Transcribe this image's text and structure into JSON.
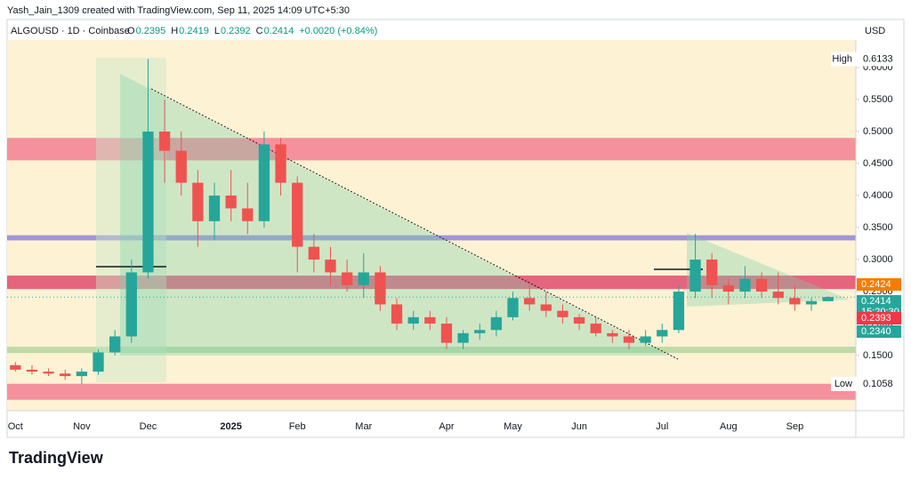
{
  "header": {
    "credit": "Yash_Jain_1309 created with TradingView.com, Sep 11, 2025 14:09 UTC+5:30",
    "symbol": "ALGOUSD · 1D · Coinbase",
    "ohlc": [
      {
        "name": "O",
        "value": 0.2395
      },
      {
        "name": "H",
        "value": 0.2419
      },
      {
        "name": "L",
        "value": 0.2392
      },
      {
        "name": "C",
        "value": 0.2414
      }
    ],
    "change": "+0.0020 (+0.84%)",
    "currency": "USD",
    "logo": "TradingView"
  },
  "chart_data": {
    "type": "candlestick",
    "categories": [
      "Oct",
      null,
      null,
      null,
      "Nov",
      null,
      null,
      null,
      "Dec",
      null,
      null,
      null,
      null,
      "2025",
      null,
      null,
      null,
      "Feb",
      null,
      null,
      null,
      "Mar",
      null,
      null,
      null,
      null,
      "Apr",
      null,
      null,
      null,
      "May",
      null,
      null,
      null,
      "Jun",
      null,
      null,
      null,
      null,
      "Jul",
      null,
      null,
      null,
      "Aug",
      null,
      null,
      null,
      "Sep",
      null,
      null
    ],
    "open": [
      0.135,
      0.128,
      0.125,
      0.122,
      0.118,
      0.125,
      0.155,
      0.18,
      0.28,
      0.5,
      0.47,
      0.42,
      0.36,
      0.4,
      0.38,
      0.36,
      0.48,
      0.42,
      0.32,
      0.3,
      0.28,
      0.26,
      0.28,
      0.23,
      0.2,
      0.21,
      0.2,
      0.17,
      0.185,
      0.19,
      0.21,
      0.24,
      0.23,
      0.22,
      0.21,
      0.2,
      0.185,
      0.18,
      0.17,
      0.18,
      0.19,
      0.25,
      0.3,
      0.26,
      0.25,
      0.27,
      0.25,
      0.24,
      0.23,
      0.235
    ],
    "high": [
      0.14,
      0.135,
      0.13,
      0.128,
      0.13,
      0.16,
      0.19,
      0.3,
      0.6133,
      0.55,
      0.5,
      0.44,
      0.42,
      0.44,
      0.42,
      0.5,
      0.49,
      0.43,
      0.34,
      0.32,
      0.3,
      0.31,
      0.29,
      0.24,
      0.22,
      0.22,
      0.21,
      0.19,
      0.2,
      0.22,
      0.25,
      0.26,
      0.25,
      0.23,
      0.215,
      0.21,
      0.19,
      0.19,
      0.19,
      0.2,
      0.26,
      0.34,
      0.31,
      0.27,
      0.29,
      0.28,
      0.28,
      0.26,
      0.24,
      0.2424
    ],
    "low": [
      0.125,
      0.12,
      0.118,
      0.112,
      0.1058,
      0.12,
      0.15,
      0.17,
      0.27,
      0.42,
      0.4,
      0.32,
      0.33,
      0.36,
      0.34,
      0.35,
      0.4,
      0.28,
      0.28,
      0.26,
      0.25,
      0.24,
      0.22,
      0.19,
      0.19,
      0.19,
      0.16,
      0.16,
      0.175,
      0.18,
      0.205,
      0.22,
      0.21,
      0.2,
      0.19,
      0.18,
      0.17,
      0.16,
      0.165,
      0.17,
      0.185,
      0.24,
      0.24,
      0.23,
      0.24,
      0.24,
      0.23,
      0.22,
      0.22,
      0.2392
    ],
    "close": [
      0.128,
      0.125,
      0.122,
      0.118,
      0.125,
      0.155,
      0.18,
      0.28,
      0.5,
      0.47,
      0.42,
      0.36,
      0.4,
      0.38,
      0.36,
      0.48,
      0.42,
      0.32,
      0.3,
      0.28,
      0.26,
      0.28,
      0.23,
      0.2,
      0.21,
      0.2,
      0.17,
      0.185,
      0.19,
      0.21,
      0.24,
      0.23,
      0.22,
      0.21,
      0.2,
      0.185,
      0.18,
      0.17,
      0.18,
      0.19,
      0.25,
      0.3,
      0.26,
      0.25,
      0.27,
      0.25,
      0.24,
      0.23,
      0.235,
      0.2414
    ],
    "up_color": "#26a69a",
    "down_color": "#ef5350",
    "ylim": [
      0.064,
      0.643
    ],
    "yticks": [
      {
        "value": 0.15,
        "label": "0.1500"
      },
      {
        "value": 0.2,
        "label": "0.2000"
      },
      {
        "value": 0.25,
        "label": "0.2500"
      },
      {
        "value": 0.3,
        "label": "0.3000"
      },
      {
        "value": 0.35,
        "label": "0.3500"
      },
      {
        "value": 0.4,
        "label": "0.4000"
      },
      {
        "value": 0.45,
        "label": "0.4500"
      },
      {
        "value": 0.5,
        "label": "0.5000"
      },
      {
        "value": 0.55,
        "label": "0.5500"
      },
      {
        "value": 0.6,
        "label": "0.6000"
      }
    ],
    "zones": [
      {
        "from": 0.455,
        "to": 0.49,
        "color": "rgba(240,80,120,0.6)"
      },
      {
        "from": 0.081,
        "to": 0.106,
        "color": "rgba(240,80,120,0.6)"
      },
      {
        "from": 0.254,
        "to": 0.275,
        "color": "rgba(220,40,90,0.7)"
      },
      {
        "from": 0.33,
        "to": 0.338,
        "color": "rgba(120,110,220,0.7)"
      },
      {
        "from": 0.154,
        "to": 0.164,
        "color": "rgba(76,175,80,0.35)"
      }
    ],
    "extremes": [
      {
        "name": "High",
        "value": 0.6133
      },
      {
        "name": "Low",
        "value": 0.1058
      }
    ],
    "price_tags": [
      {
        "value": 0.2424,
        "color": "#f57c00"
      },
      {
        "value": 0.2414,
        "color": "#26a69a",
        "countdown": "15:20:30"
      },
      {
        "value": 0.2393,
        "color": "#f23645"
      },
      {
        "value": 0.234,
        "label": "0.2340",
        "color": "#26a69a"
      }
    ]
  }
}
